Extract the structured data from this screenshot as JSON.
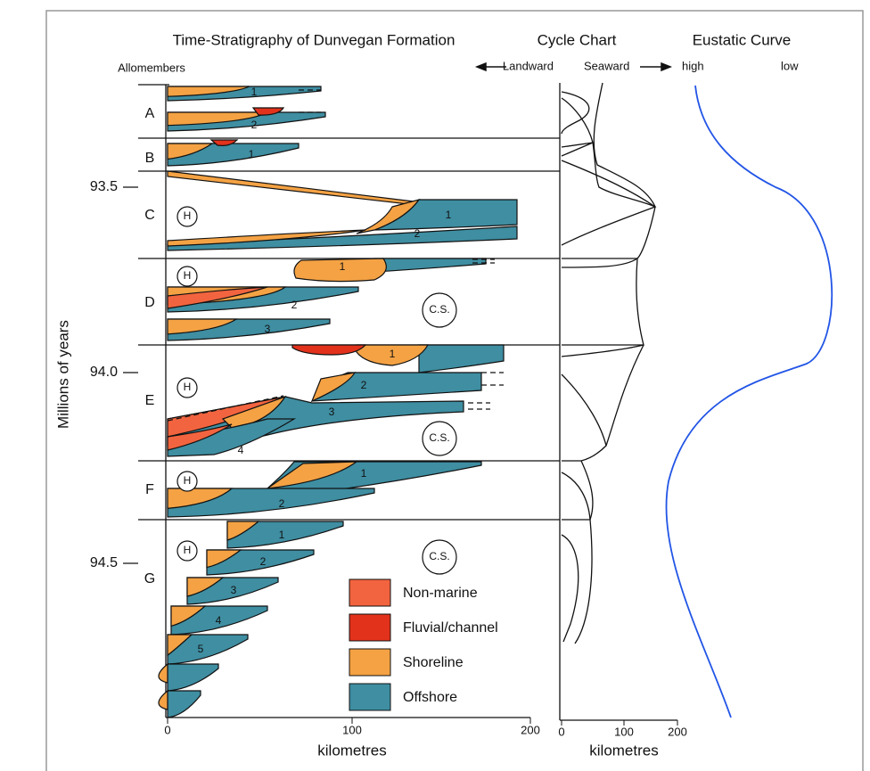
{
  "header": {
    "title": "Time-Stratigraphy of Dunvegan Formation",
    "cycle_title": "Cycle Chart",
    "eustatic_title": "Eustatic Curve",
    "landward": "Landward",
    "seaward": "Seaward",
    "high": "high",
    "low": "low",
    "allomembers": "Allomembers"
  },
  "axis": {
    "label": "Millions of years",
    "ticks": [
      "93.5",
      "94.0",
      "94.5"
    ],
    "x_label": "kilometres",
    "x_ticks": [
      "0",
      "100",
      "200"
    ],
    "cycle_x_label": "kilometres",
    "cycle_x_ticks": [
      "0",
      "100",
      "200"
    ]
  },
  "allomembers": [
    "A",
    "B",
    "C",
    "D",
    "E",
    "F",
    "G"
  ],
  "annotations": {
    "hiatus": "H",
    "condensed": "C.S."
  },
  "unit_numbers": [
    "1",
    "2",
    "3",
    "4",
    "5"
  ],
  "legend": [
    "Non-marine",
    "Fluvial/channel",
    "Shoreline",
    "Offshore"
  ]
}
